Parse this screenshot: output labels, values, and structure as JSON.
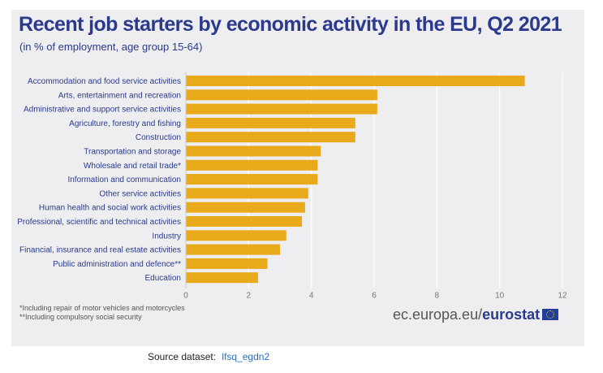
{
  "chart_data": {
    "type": "bar",
    "orientation": "horizontal",
    "title": "Recent job starters by economic activity in the EU, Q2 2021",
    "subtitle": "(in % of employment, age group 15-64)",
    "categories": [
      "Accommodation and food service activities",
      "Arts, entertainment and recreation",
      "Administrative and support service activities",
      "Agriculture, forestry and fishing",
      "Construction",
      "Transportation and storage",
      "Wholesale and retail trade*",
      "Information and communication",
      "Other service activities",
      "Human health and social work activities",
      "Professional, scientific and technical activities",
      "Industry",
      "Financial, insurance and real estate activities",
      "Public administration and defence**",
      "Education"
    ],
    "values": [
      10.8,
      6.1,
      6.1,
      5.4,
      5.4,
      4.3,
      4.2,
      4.2,
      3.9,
      3.8,
      3.7,
      3.2,
      3.0,
      2.6,
      2.3
    ],
    "xlim": [
      0,
      12
    ],
    "xticks": [
      "0",
      "2",
      "4",
      "6",
      "8",
      "10",
      "12"
    ],
    "grid": true,
    "bar_color": "#e8a91b",
    "title_color": "#2b3a8c"
  },
  "footnotes": [
    "*Including repair of motor vehicles and motorcycles",
    "**Including compulsory social security"
  ],
  "brand": {
    "prefix": "ec.europa.eu/",
    "name": "eurostat"
  },
  "source": {
    "label": "Source dataset:",
    "link": "lfsq_egdn2"
  }
}
